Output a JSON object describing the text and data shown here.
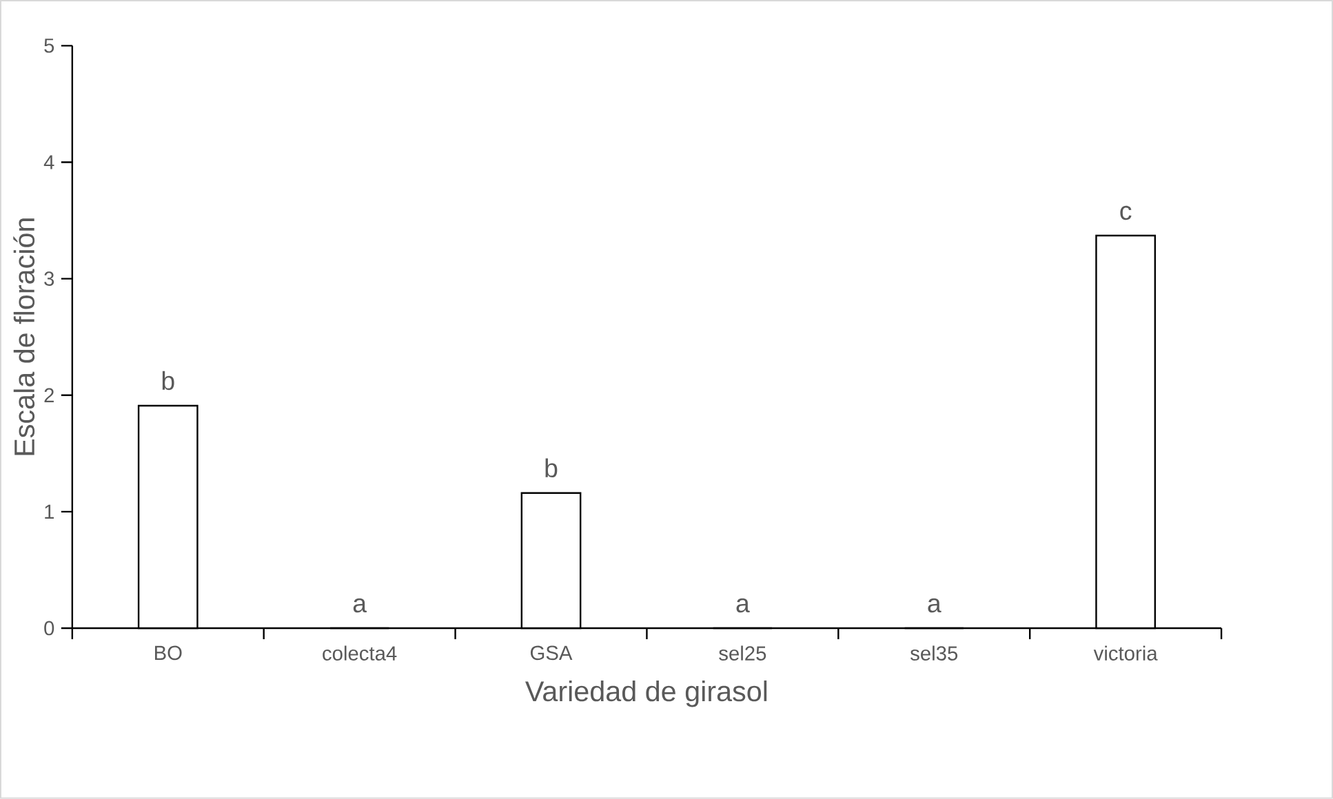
{
  "chart_data": {
    "type": "bar",
    "xlabel": "Variedad de girasol",
    "ylabel": "Escala de floración",
    "categories": [
      "BO",
      "colecta4",
      "GSA",
      "sel25",
      "sel35",
      "victoria"
    ],
    "values": [
      1.91,
      0,
      1.16,
      0,
      0,
      3.37
    ],
    "color": "#ffffff",
    "ylim": [
      0,
      5
    ],
    "yticks": [
      0,
      1,
      2,
      3,
      4,
      5
    ],
    "grid": false,
    "annotations": [
      {
        "text": "b",
        "x": "BO",
        "y": 1.91
      },
      {
        "text": "a",
        "x": "colecta4",
        "y": 0
      },
      {
        "text": "b",
        "x": "GSA",
        "y": 1.16
      },
      {
        "text": "a",
        "x": "sel25",
        "y": 0
      },
      {
        "text": "a",
        "x": "sel35",
        "y": 0
      },
      {
        "text": "c",
        "x": "victoria",
        "y": 3.37
      }
    ]
  }
}
